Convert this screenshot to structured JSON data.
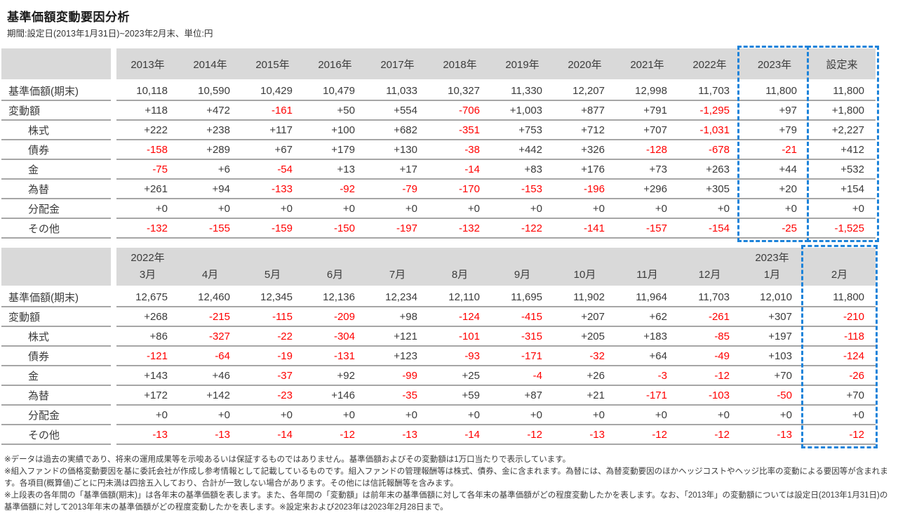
{
  "title": "基準価額変動要因分析",
  "subtitle": "期間:設定日(2013年1月31日)~2023年2月末、単位:円",
  "colors": {
    "header_bg": "#d9d9d9",
    "row_border": "#a6a6a6",
    "negative_value": "#ff0000",
    "highlight_dashed_border": "#1c83da"
  },
  "table_yearly": {
    "columns": [
      "2013年",
      "2014年",
      "2015年",
      "2016年",
      "2017年",
      "2018年",
      "2019年",
      "2020年",
      "2021年",
      "2022年",
      "2023年",
      "設定来"
    ],
    "highlight_columns": [
      10,
      11
    ],
    "rows": [
      {
        "label": "基準価額(期末)",
        "indent": false,
        "values": [
          "10,118",
          "10,590",
          "10,429",
          "10,479",
          "11,033",
          "10,327",
          "11,330",
          "12,207",
          "12,998",
          "11,703",
          "11,800",
          "11,800"
        ]
      },
      {
        "label": "変動額",
        "indent": false,
        "values": [
          "+118",
          "+472",
          "-161",
          "+50",
          "+554",
          "-706",
          "+1,003",
          "+877",
          "+791",
          "-1,295",
          "+97",
          "+1,800"
        ]
      },
      {
        "label": "株式",
        "indent": true,
        "values": [
          "+222",
          "+238",
          "+117",
          "+100",
          "+682",
          "-351",
          "+753",
          "+712",
          "+707",
          "-1,031",
          "+79",
          "+2,227"
        ]
      },
      {
        "label": "債券",
        "indent": true,
        "values": [
          "-158",
          "+289",
          "+67",
          "+179",
          "+130",
          "-38",
          "+442",
          "+326",
          "-128",
          "-678",
          "-21",
          "+412"
        ]
      },
      {
        "label": "金",
        "indent": true,
        "values": [
          "-75",
          "+6",
          "-54",
          "+13",
          "+17",
          "-14",
          "+83",
          "+176",
          "+73",
          "+263",
          "+44",
          "+532"
        ]
      },
      {
        "label": "為替",
        "indent": true,
        "values": [
          "+261",
          "+94",
          "-133",
          "-92",
          "-79",
          "-170",
          "-153",
          "-196",
          "+296",
          "+305",
          "+20",
          "+154"
        ]
      },
      {
        "label": "分配金",
        "indent": true,
        "values": [
          "+0",
          "+0",
          "+0",
          "+0",
          "+0",
          "+0",
          "+0",
          "+0",
          "+0",
          "+0",
          "+0",
          "+0"
        ]
      },
      {
        "label": "その他",
        "indent": true,
        "values": [
          "-132",
          "-155",
          "-159",
          "-150",
          "-197",
          "-132",
          "-122",
          "-141",
          "-157",
          "-154",
          "-25",
          "-1,525"
        ]
      }
    ]
  },
  "table_monthly": {
    "columns_top": [
      "2022年",
      "",
      "",
      "",
      "",
      "",
      "",
      "",
      "",
      "",
      "2023年",
      ""
    ],
    "columns": [
      "3月",
      "4月",
      "5月",
      "6月",
      "7月",
      "8月",
      "9月",
      "10月",
      "11月",
      "12月",
      "1月",
      "2月"
    ],
    "highlight_columns": [
      11
    ],
    "rows": [
      {
        "label": "基準価額(期末)",
        "indent": false,
        "values": [
          "12,675",
          "12,460",
          "12,345",
          "12,136",
          "12,234",
          "12,110",
          "11,695",
          "11,902",
          "11,964",
          "11,703",
          "12,010",
          "11,800"
        ]
      },
      {
        "label": "変動額",
        "indent": false,
        "values": [
          "+268",
          "-215",
          "-115",
          "-209",
          "+98",
          "-124",
          "-415",
          "+207",
          "+62",
          "-261",
          "+307",
          "-210"
        ]
      },
      {
        "label": "株式",
        "indent": true,
        "values": [
          "+86",
          "-327",
          "-22",
          "-304",
          "+121",
          "-101",
          "-315",
          "+205",
          "+183",
          "-85",
          "+197",
          "-118"
        ]
      },
      {
        "label": "債券",
        "indent": true,
        "values": [
          "-121",
          "-64",
          "-19",
          "-131",
          "+123",
          "-93",
          "-171",
          "-32",
          "+64",
          "-49",
          "+103",
          "-124"
        ]
      },
      {
        "label": "金",
        "indent": true,
        "values": [
          "+143",
          "+46",
          "-37",
          "+92",
          "-99",
          "+25",
          "-4",
          "+26",
          "-3",
          "-12",
          "+70",
          "-26"
        ]
      },
      {
        "label": "為替",
        "indent": true,
        "values": [
          "+172",
          "+142",
          "-23",
          "+146",
          "-35",
          "+59",
          "+87",
          "+21",
          "-171",
          "-103",
          "-50",
          "+70"
        ]
      },
      {
        "label": "分配金",
        "indent": true,
        "values": [
          "+0",
          "+0",
          "+0",
          "+0",
          "+0",
          "+0",
          "+0",
          "+0",
          "+0",
          "+0",
          "+0",
          "+0"
        ]
      },
      {
        "label": "その他",
        "indent": true,
        "values": [
          "-13",
          "-13",
          "-14",
          "-12",
          "-13",
          "-14",
          "-12",
          "-13",
          "-12",
          "-12",
          "-13",
          "-12"
        ]
      }
    ]
  },
  "footnotes": [
    "※データは過去の実績であり、将来の運用成果等を示唆あるいは保証するものではありません。基準価額およびその変動額は1万口当たりで表示しています。",
    "※組入ファンドの価格変動要因を基に委託会社が作成し参考情報として記載しているものです。組入ファンドの管理報酬等は株式、債券、金に含まれます。為替には、為替変動要因のほかヘッジコストやヘッジ比率の変動による要因等が含まれます。各項目(概算値)ごとに円未満は四捨五入しており、合計が一致しない場合があります。その他には信託報酬等を含みます。",
    "※上段表の各年間の「基準価額(期末)」は各年末の基準価額を表します。また、各年間の「変動額」は前年末の基準価額に対して各年末の基準価額がどの程度変動したかを表します。なお、「2013年」の変動額については設定日(2013年1月31日)の基準価額に対して2013年年末の基準価額がどの程度変動したかを表します。※設定来および2023年は2023年2月28日まで。"
  ]
}
